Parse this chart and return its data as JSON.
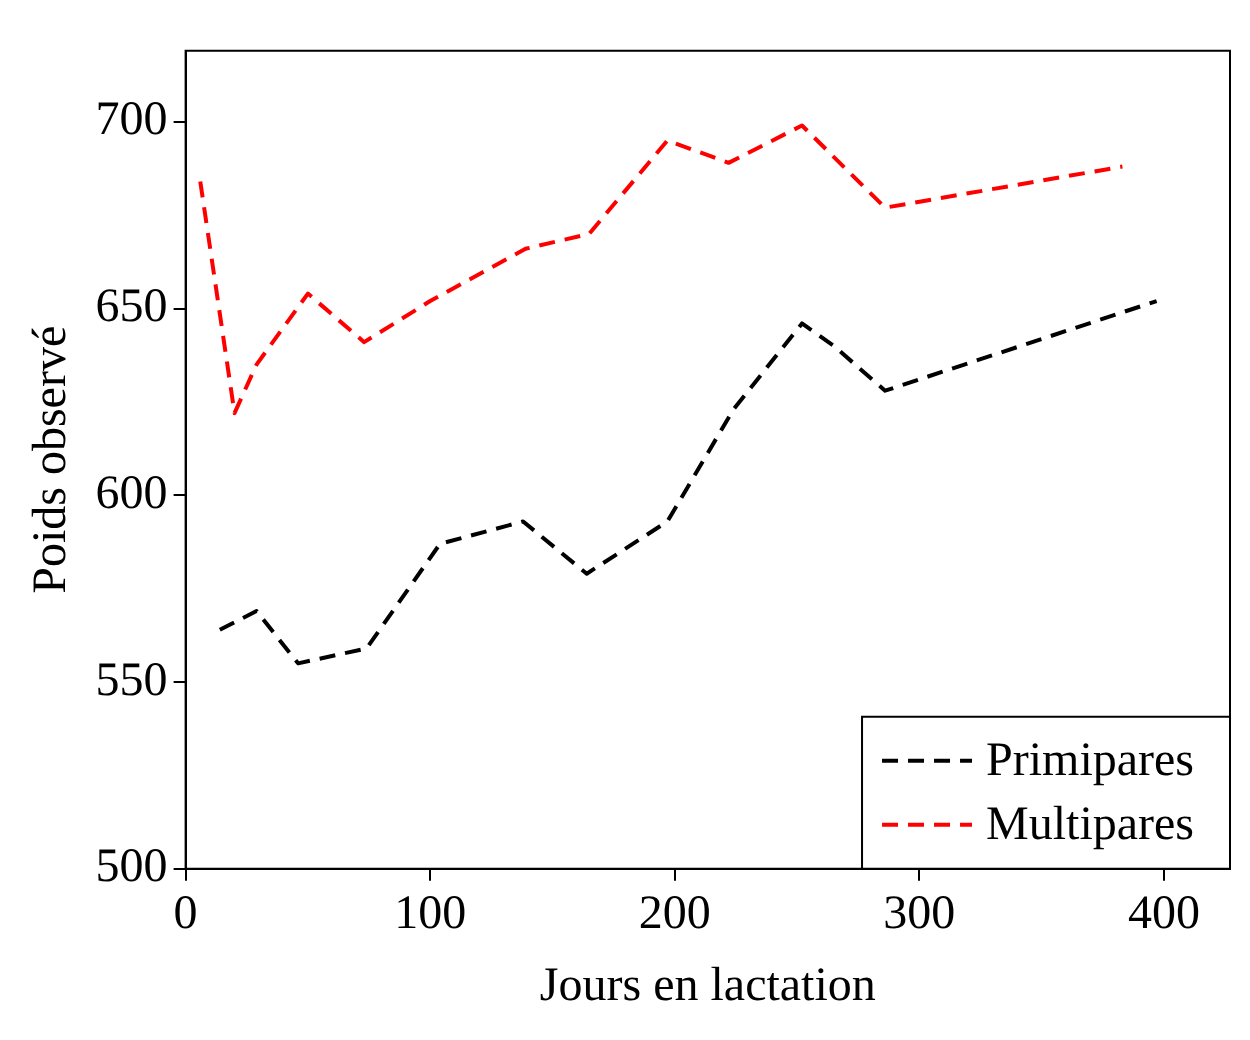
{
  "chart_data": {
    "type": "line",
    "xlabel": "Jours en lactation",
    "ylabel": "Poids observé",
    "xlim": [
      0,
      427
    ],
    "xticks": [
      0,
      100,
      200,
      300,
      400
    ],
    "ylim": [
      500,
      719
    ],
    "yticks": [
      500,
      550,
      600,
      650,
      700
    ],
    "legend": "bottom right",
    "line_style": "dashed",
    "marker": "none",
    "series": [
      {
        "name": "Primipares",
        "color": "#000000",
        "x": [
          14,
          29,
          46,
          74,
          104,
          138,
          164,
          197,
          224,
          252,
          265,
          286,
          397
        ],
        "values": [
          564,
          569,
          555,
          559,
          587,
          593,
          579,
          593,
          623,
          646,
          640,
          628,
          652
        ]
      },
      {
        "name": "Multipares",
        "color": "#ff0000",
        "x": [
          6,
          20,
          29,
          50,
          73,
          100,
          139,
          165,
          197,
          222,
          252,
          286,
          383
        ],
        "values": [
          684,
          622,
          635,
          654,
          641,
          652,
          666,
          670,
          695,
          689,
          699,
          677,
          688
        ]
      }
    ]
  }
}
